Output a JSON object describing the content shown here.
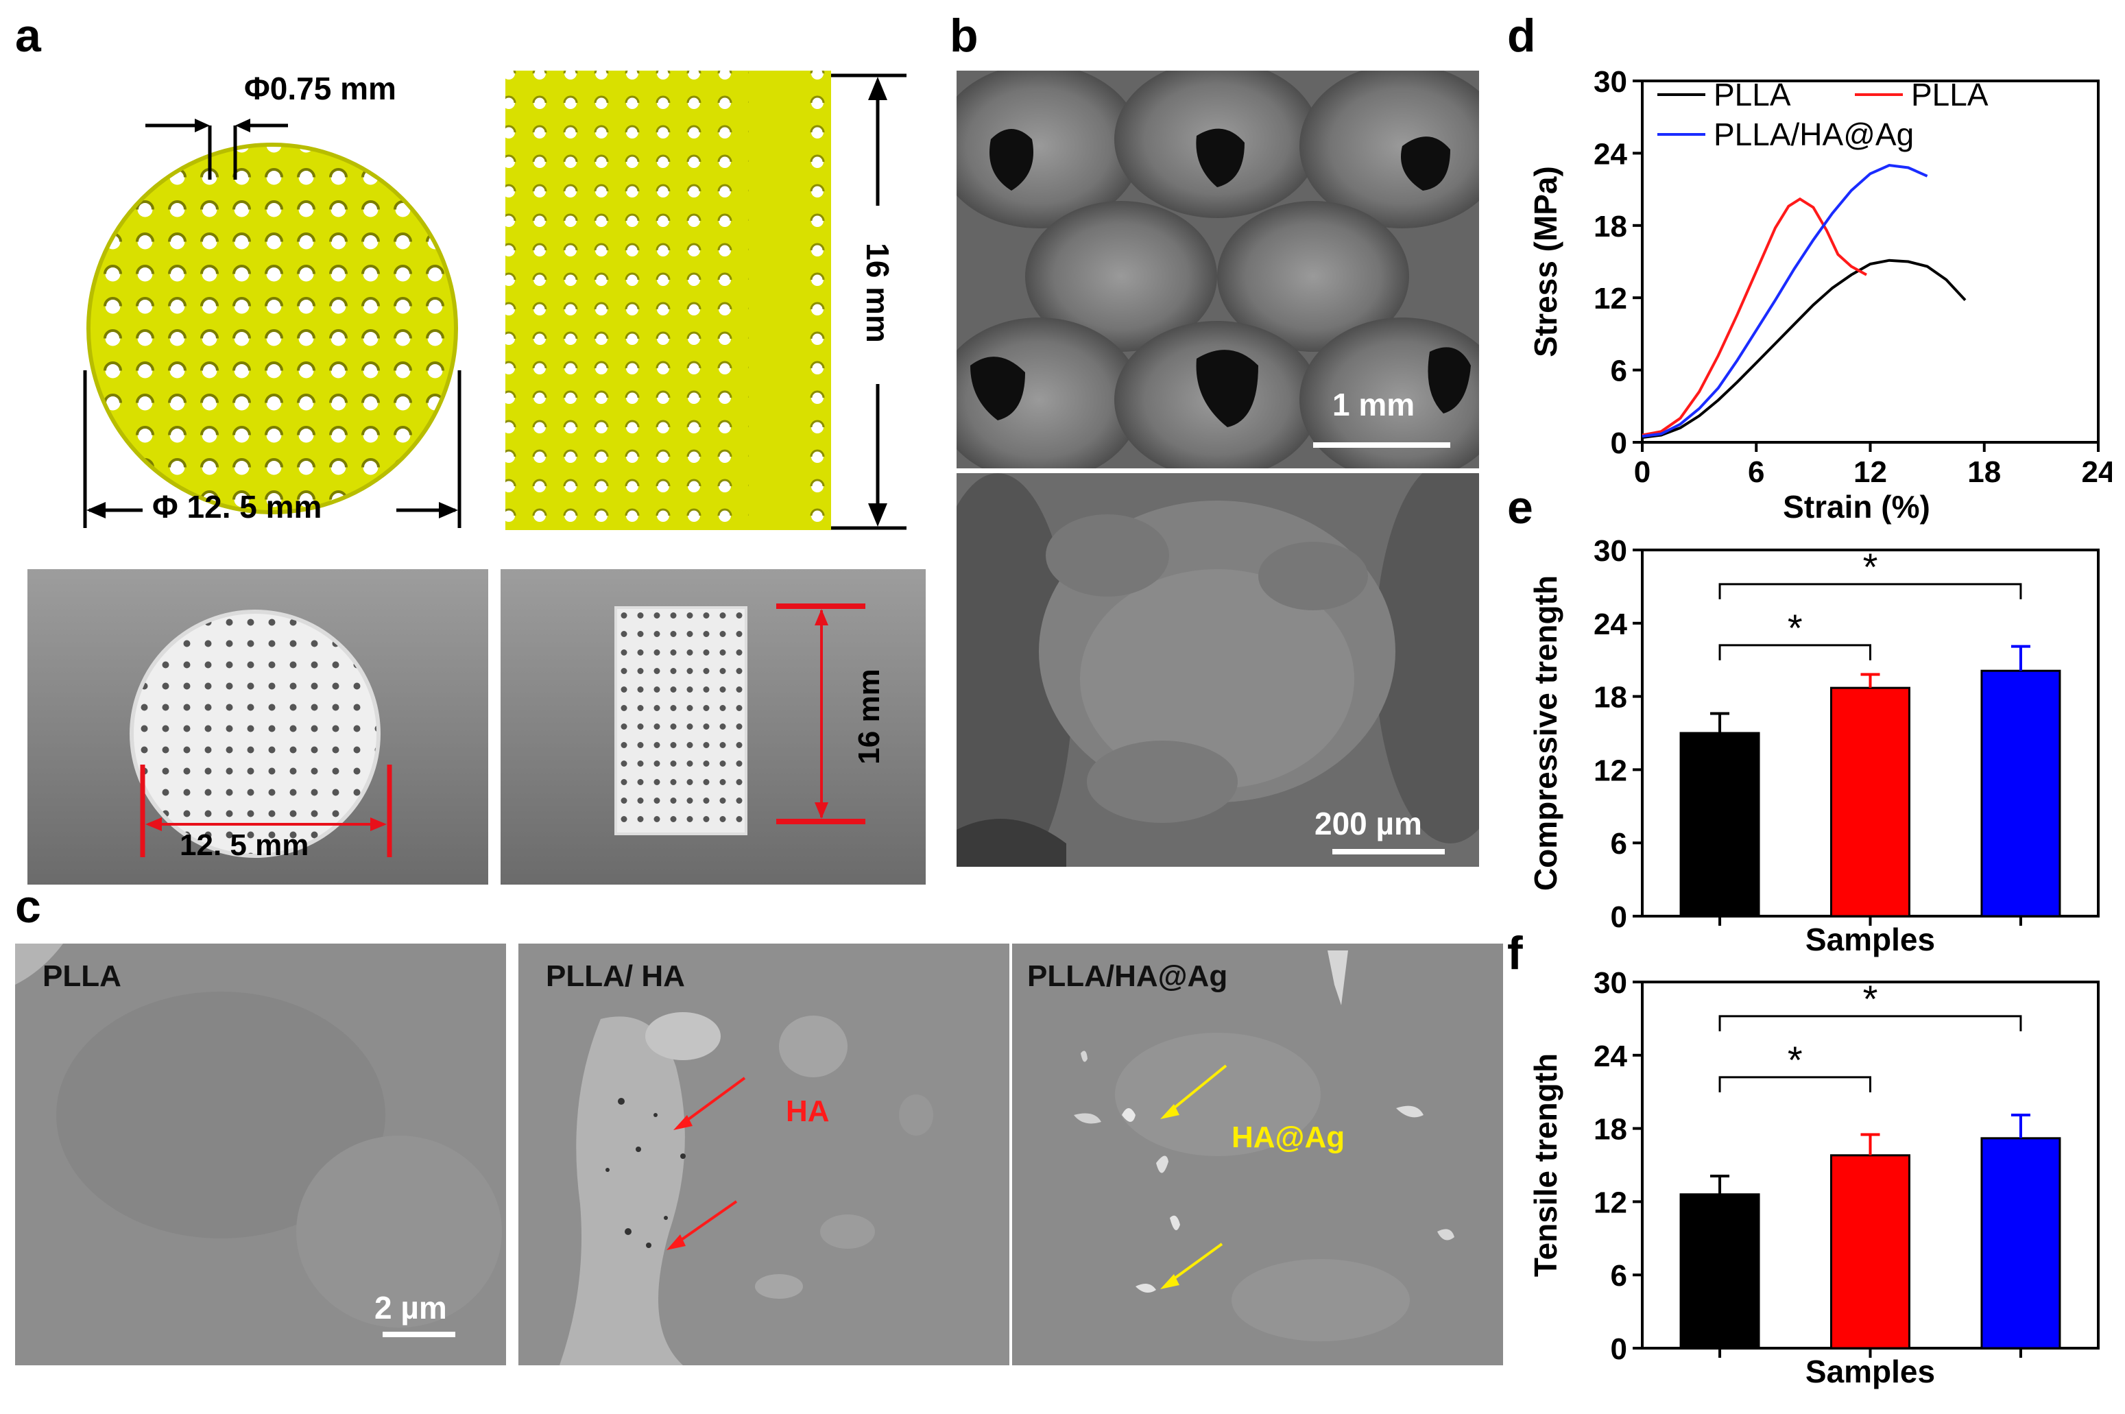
{
  "panels": {
    "a": "a",
    "b": "b",
    "c": "c",
    "d": "d",
    "e": "e",
    "f": "f"
  },
  "panel_a": {
    "pore_dim": "Φ0.75 mm",
    "diameter_dim": "Φ 12. 5 mm",
    "height_dim": "16 mm",
    "photo_diameter": "12. 5 mm",
    "photo_height": "16 mm",
    "colors": {
      "model": "#d9e000",
      "dims_photo": "#e8101a"
    }
  },
  "panel_b": {
    "scale_top": "1 mm",
    "scale_bottom": "200 µm"
  },
  "panel_c": {
    "labels": [
      "PLLA",
      "PLLA/ HA",
      "PLLA/HA@Ag"
    ],
    "scale": "2 µm",
    "arrow_label_ha": "HA",
    "arrow_label_haag": "HA@Ag",
    "colors": {
      "ha": "#ff1a1a",
      "haag": "#ffee00"
    }
  },
  "chart_data": [
    {
      "type": "line",
      "panel": "d",
      "xlabel": "Strain (%)",
      "ylabel": "Stress (MPa)",
      "xlim": [
        0,
        24
      ],
      "ylim": [
        0,
        30
      ],
      "xticks": [
        "0",
        "6",
        "12",
        "18",
        "24"
      ],
      "yticks": [
        "0",
        "6",
        "12",
        "18",
        "24",
        "30"
      ],
      "legend": "top-left",
      "series": [
        {
          "name": "PLLA",
          "color": "#000000",
          "x": [
            0,
            1,
            2,
            3,
            4,
            5,
            6,
            7,
            8,
            9,
            10,
            11,
            12,
            13,
            14,
            15,
            16,
            17
          ],
          "y": [
            0.4,
            0.6,
            1.2,
            2.2,
            3.5,
            5,
            6.6,
            8.2,
            9.8,
            11.4,
            12.8,
            13.9,
            14.8,
            15.1,
            15,
            14.6,
            13.5,
            11.8
          ]
        },
        {
          "name": "PLLA",
          "color": "#ff1a1a",
          "x": [
            0,
            1,
            2,
            3,
            4,
            5,
            6,
            7,
            7.7,
            8.3,
            9,
            9.7,
            10.3,
            11,
            11.8
          ],
          "y": [
            0.6,
            0.9,
            2,
            4.2,
            7.2,
            10.6,
            14.2,
            17.8,
            19.6,
            20.2,
            19.5,
            17.6,
            15.6,
            14.6,
            13.9
          ]
        },
        {
          "name": "PLLA/HA@Ag",
          "color": "#1a2cff",
          "x": [
            0,
            1,
            2,
            3,
            4,
            5,
            6,
            7,
            8,
            9,
            10,
            11,
            12,
            13,
            14,
            15
          ],
          "y": [
            0.5,
            0.7,
            1.5,
            2.8,
            4.5,
            6.8,
            9.3,
            11.8,
            14.4,
            16.8,
            19,
            20.9,
            22.3,
            23,
            22.8,
            22.1
          ]
        }
      ]
    },
    {
      "type": "bar",
      "panel": "e",
      "xlabel": "Samples",
      "ylabel": "Compressive trength",
      "ylim": [
        0,
        30
      ],
      "yticks": [
        "0",
        "6",
        "12",
        "18",
        "24",
        "30"
      ],
      "values": [
        15,
        18.7,
        20.1
      ],
      "errors": [
        1.6,
        1.1,
        2
      ],
      "colors": [
        "#000000",
        "#ff0000",
        "#0000ff"
      ],
      "significance": [
        "*",
        "*"
      ]
    },
    {
      "type": "bar",
      "panel": "f",
      "xlabel": "Samples",
      "ylabel": "Tensile trength",
      "ylim": [
        0,
        30
      ],
      "yticks": [
        "0",
        "6",
        "12",
        "18",
        "24",
        "30"
      ],
      "values": [
        12.6,
        15.8,
        17.2
      ],
      "errors": [
        1.5,
        1.7,
        1.9
      ],
      "colors": [
        "#000000",
        "#ff0000",
        "#0000ff"
      ],
      "significance": [
        "*",
        "*"
      ]
    }
  ]
}
